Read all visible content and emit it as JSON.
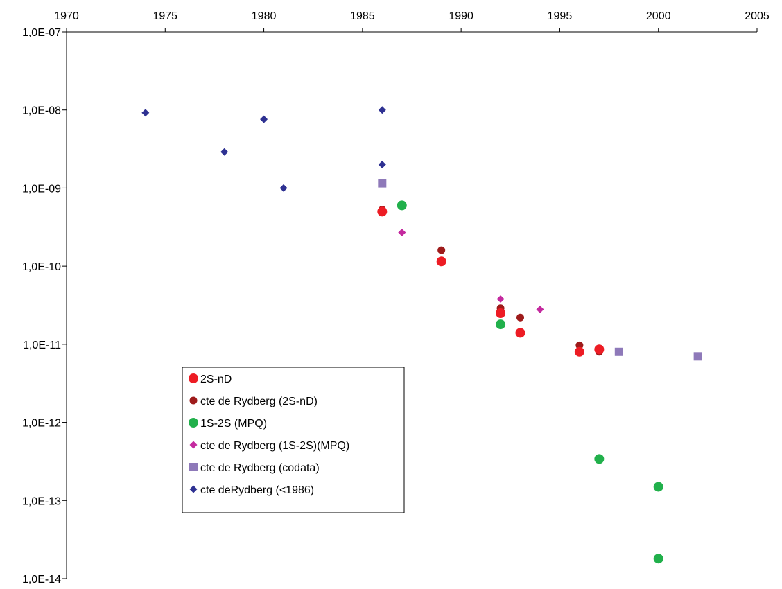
{
  "chart_data": {
    "type": "scatter",
    "title": "",
    "xlabel": "",
    "ylabel": "",
    "x_axis": {
      "position": "top",
      "range": [
        1970,
        2005
      ],
      "ticks": [
        1970,
        1975,
        1980,
        1985,
        1990,
        1995,
        2000,
        2005
      ],
      "tick_labels": [
        "1970",
        "1975",
        "1980",
        "1985",
        "1990",
        "1995",
        "2000",
        "2005"
      ]
    },
    "y_axis": {
      "scale": "log",
      "range": [
        1e-14,
        1e-07
      ],
      "ticks": [
        1e-07,
        1e-08,
        1e-09,
        1e-10,
        1e-11,
        1e-12,
        1e-13,
        1e-14
      ],
      "tick_labels": [
        "1,0E-07",
        "1,0E-08",
        "1,0E-09",
        "1,0E-10",
        "1,0E-11",
        "1,0E-12",
        "1,0E-13",
        "1,0E-14"
      ]
    },
    "grid": false,
    "legend": {
      "placement": "lower-left"
    },
    "series": [
      {
        "name": "2S-nD",
        "marker": "circle-large",
        "color": "#ed1c24",
        "points": [
          [
            1986,
            5e-10
          ],
          [
            1989,
            1.15e-10
          ],
          [
            1992,
            2.5e-11
          ],
          [
            1993,
            1.4e-11
          ],
          [
            1996,
            8e-12
          ],
          [
            1997,
            8.6e-12
          ]
        ]
      },
      {
        "name": "cte de Rydberg (2S-nD)",
        "marker": "circle-small",
        "color": "#9e1b1b",
        "points": [
          [
            1986,
            5.3e-10
          ],
          [
            1989,
            1.6e-10
          ],
          [
            1992,
            2.9e-11
          ],
          [
            1993,
            2.2e-11
          ],
          [
            1996,
            9.7e-12
          ],
          [
            1997,
            8e-12
          ]
        ]
      },
      {
        "name": "1S-2S (MPQ)",
        "marker": "circle-large",
        "color": "#21b04b",
        "points": [
          [
            1987,
            6e-10
          ],
          [
            1992,
            1.8e-11
          ],
          [
            1997,
            3.4e-13
          ],
          [
            2000,
            1.5e-13
          ],
          [
            2000,
            1.8e-14
          ]
        ]
      },
      {
        "name": "cte de Rydberg (1S-2S)(MPQ)",
        "marker": "diamond",
        "color": "#c42a9f",
        "points": [
          [
            1987,
            2.7e-10
          ],
          [
            1992,
            3.8e-11
          ],
          [
            1994,
            2.8e-11
          ]
        ]
      },
      {
        "name": "cte de Rydberg (codata)",
        "marker": "square",
        "color": "#8e79b9",
        "points": [
          [
            1986,
            1.15e-09
          ],
          [
            1998,
            8e-12
          ],
          [
            2002,
            7e-12
          ]
        ]
      },
      {
        "name": "cte deRydberg (<1986)",
        "marker": "diamond",
        "color": "#2e3192",
        "points": [
          [
            1974,
            9.2e-09
          ],
          [
            1978,
            2.9e-09
          ],
          [
            1980,
            7.6e-09
          ],
          [
            1981,
            1e-09
          ],
          [
            1986,
            1e-08
          ],
          [
            1986,
            2e-09
          ]
        ]
      }
    ]
  }
}
